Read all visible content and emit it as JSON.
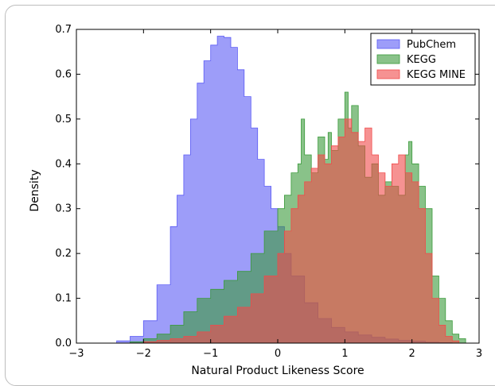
{
  "chart_data": {
    "type": "area",
    "title": "",
    "xlabel": "Natural Product Likeness Score",
    "ylabel": "Density",
    "xlim": [
      -3,
      3
    ],
    "ylim": [
      0,
      0.7
    ],
    "xticks": [
      -3,
      -2,
      -1,
      0,
      1,
      2,
      3
    ],
    "yticks": [
      0.0,
      0.1,
      0.2,
      0.3,
      0.4,
      0.5,
      0.6,
      0.7
    ],
    "grid": false,
    "legend_position": "top-right",
    "series": [
      {
        "name": "PubChem",
        "color": "#5b5bf5",
        "x": [
          -2.7,
          -2.4,
          -2.2,
          -2.0,
          -1.8,
          -1.6,
          -1.5,
          -1.4,
          -1.3,
          -1.2,
          -1.1,
          -1.0,
          -0.9,
          -0.8,
          -0.7,
          -0.6,
          -0.5,
          -0.4,
          -0.3,
          -0.2,
          -0.1,
          0.0,
          0.1,
          0.2,
          0.4,
          0.6,
          0.8,
          1.0,
          1.2,
          1.4,
          1.6,
          1.8,
          2.0,
          2.2,
          2.4,
          2.6
        ],
        "values": [
          0.0,
          0.005,
          0.015,
          0.05,
          0.13,
          0.26,
          0.33,
          0.42,
          0.5,
          0.58,
          0.63,
          0.665,
          0.685,
          0.682,
          0.66,
          0.61,
          0.55,
          0.48,
          0.41,
          0.35,
          0.3,
          0.26,
          0.2,
          0.15,
          0.09,
          0.055,
          0.035,
          0.025,
          0.018,
          0.013,
          0.009,
          0.006,
          0.004,
          0.002,
          0.001,
          0.0
        ]
      },
      {
        "name": "KEGG",
        "color": "#3a9a3a",
        "x": [
          -2.4,
          -2.2,
          -2.0,
          -1.8,
          -1.6,
          -1.4,
          -1.2,
          -1.0,
          -0.8,
          -0.6,
          -0.4,
          -0.2,
          0.0,
          0.1,
          0.2,
          0.3,
          0.35,
          0.4,
          0.5,
          0.6,
          0.7,
          0.75,
          0.8,
          0.9,
          1.0,
          1.05,
          1.1,
          1.2,
          1.3,
          1.4,
          1.5,
          1.6,
          1.7,
          1.8,
          1.9,
          1.95,
          2.0,
          2.1,
          2.2,
          2.3,
          2.4,
          2.5,
          2.6,
          2.7,
          2.8
        ],
        "values": [
          0.0,
          0.003,
          0.01,
          0.02,
          0.04,
          0.07,
          0.1,
          0.12,
          0.14,
          0.16,
          0.2,
          0.25,
          0.3,
          0.33,
          0.38,
          0.4,
          0.5,
          0.42,
          0.38,
          0.46,
          0.41,
          0.47,
          0.43,
          0.5,
          0.56,
          0.48,
          0.53,
          0.44,
          0.37,
          0.4,
          0.33,
          0.36,
          0.35,
          0.33,
          0.42,
          0.45,
          0.4,
          0.35,
          0.3,
          0.15,
          0.1,
          0.05,
          0.02,
          0.01,
          0.0
        ]
      },
      {
        "name": "KEGG MINE",
        "color": "#f04a4a",
        "x": [
          -2.3,
          -2.0,
          -1.8,
          -1.6,
          -1.4,
          -1.2,
          -1.0,
          -0.8,
          -0.6,
          -0.4,
          -0.2,
          0.0,
          0.1,
          0.2,
          0.3,
          0.4,
          0.5,
          0.6,
          0.7,
          0.8,
          0.9,
          1.0,
          1.1,
          1.2,
          1.3,
          1.4,
          1.5,
          1.6,
          1.7,
          1.8,
          1.9,
          2.0,
          2.1,
          2.2,
          2.3,
          2.4,
          2.5,
          2.6,
          2.7
        ],
        "values": [
          0.0,
          0.003,
          0.006,
          0.01,
          0.015,
          0.025,
          0.04,
          0.06,
          0.08,
          0.11,
          0.15,
          0.2,
          0.25,
          0.3,
          0.33,
          0.36,
          0.39,
          0.42,
          0.4,
          0.44,
          0.46,
          0.5,
          0.47,
          0.45,
          0.48,
          0.42,
          0.38,
          0.35,
          0.4,
          0.42,
          0.38,
          0.36,
          0.3,
          0.2,
          0.1,
          0.04,
          0.015,
          0.005,
          0.0
        ]
      }
    ]
  }
}
